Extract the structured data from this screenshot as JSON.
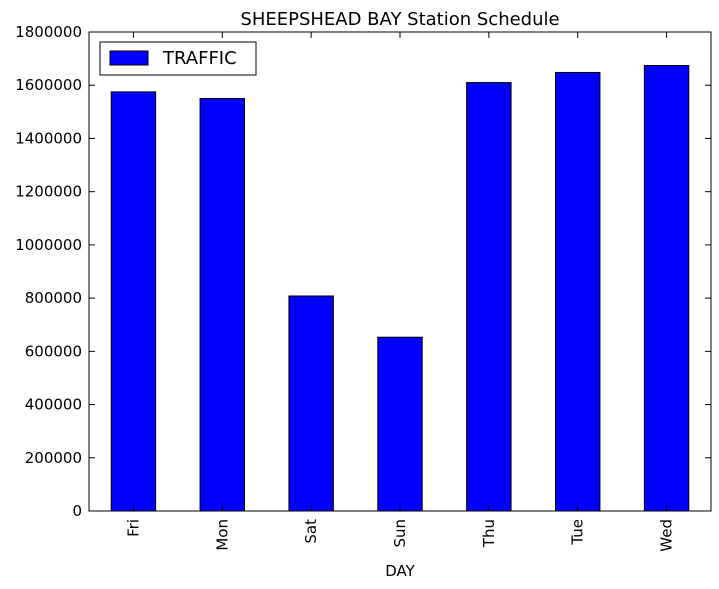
{
  "chart_data": {
    "type": "bar",
    "title": "SHEEPSHEAD BAY Station Schedule",
    "xlabel": "DAY",
    "ylabel": "",
    "categories": [
      "Fri",
      "Mon",
      "Sat",
      "Sun",
      "Thu",
      "Tue",
      "Wed"
    ],
    "series": [
      {
        "name": "TRAFFIC",
        "color": "#0000ff",
        "values": [
          1575000,
          1550000,
          808000,
          653000,
          1610000,
          1648000,
          1674000
        ]
      }
    ],
    "ylim": [
      0,
      1800000
    ],
    "yticks": [
      0,
      200000,
      400000,
      600000,
      800000,
      1000000,
      1200000,
      1400000,
      1600000,
      1800000
    ],
    "ytick_labels": [
      "0",
      "200000",
      "400000",
      "600000",
      "800000",
      "1000000",
      "1200000",
      "1400000",
      "1600000",
      "1800000"
    ],
    "grid": false,
    "legend_position": "top-left"
  }
}
